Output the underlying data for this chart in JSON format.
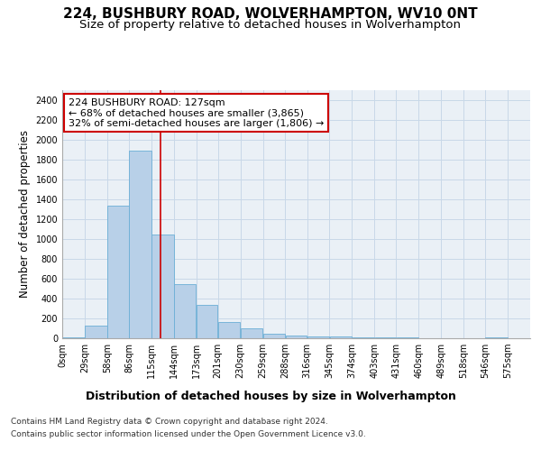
{
  "title_line1": "224, BUSHBURY ROAD, WOLVERHAMPTON, WV10 0NT",
  "title_line2": "Size of property relative to detached houses in Wolverhampton",
  "xlabel": "Distribution of detached houses by size in Wolverhampton",
  "ylabel": "Number of detached properties",
  "footer_line1": "Contains HM Land Registry data © Crown copyright and database right 2024.",
  "footer_line2": "Contains public sector information licensed under the Open Government Licence v3.0.",
  "bar_left_edges": [
    0,
    29,
    58,
    86,
    115,
    144,
    173,
    201,
    230,
    259,
    288,
    316,
    345,
    374,
    403,
    431,
    460,
    489,
    518,
    546
  ],
  "bar_widths": [
    29,
    29,
    28,
    29,
    29,
    29,
    28,
    29,
    29,
    29,
    28,
    29,
    29,
    29,
    28,
    29,
    29,
    29,
    28,
    29
  ],
  "bar_heights": [
    10,
    130,
    1340,
    1890,
    1050,
    550,
    340,
    165,
    100,
    50,
    30,
    20,
    20,
    10,
    5,
    10,
    0,
    0,
    0,
    10
  ],
  "bar_color": "#b8d0e8",
  "bar_edgecolor": "#6baed6",
  "grid_color": "#c8d8e8",
  "bg_color": "#eaf0f6",
  "vline_x": 127,
  "vline_color": "#cc0000",
  "ylim": [
    0,
    2500
  ],
  "yticks": [
    0,
    200,
    400,
    600,
    800,
    1000,
    1200,
    1400,
    1600,
    1800,
    2000,
    2200,
    2400
  ],
  "tick_labels": [
    "0sqm",
    "29sqm",
    "58sqm",
    "86sqm",
    "115sqm",
    "144sqm",
    "173sqm",
    "201sqm",
    "230sqm",
    "259sqm",
    "288sqm",
    "316sqm",
    "345sqm",
    "374sqm",
    "403sqm",
    "431sqm",
    "460sqm",
    "489sqm",
    "518sqm",
    "546sqm",
    "575sqm"
  ],
  "annotation_title": "224 BUSHBURY ROAD: 127sqm",
  "annotation_line2": "← 68% of detached houses are smaller (3,865)",
  "annotation_line3": "32% of semi-detached houses are larger (1,806) →",
  "annotation_box_color": "#ffffff",
  "annotation_box_edgecolor": "#cc0000",
  "title_fontsize": 11,
  "subtitle_fontsize": 9.5,
  "tick_fontsize": 7,
  "ylabel_fontsize": 8.5,
  "xlabel_fontsize": 9,
  "annotation_fontsize": 8,
  "footer_fontsize": 6.5,
  "xlim_max": 604
}
